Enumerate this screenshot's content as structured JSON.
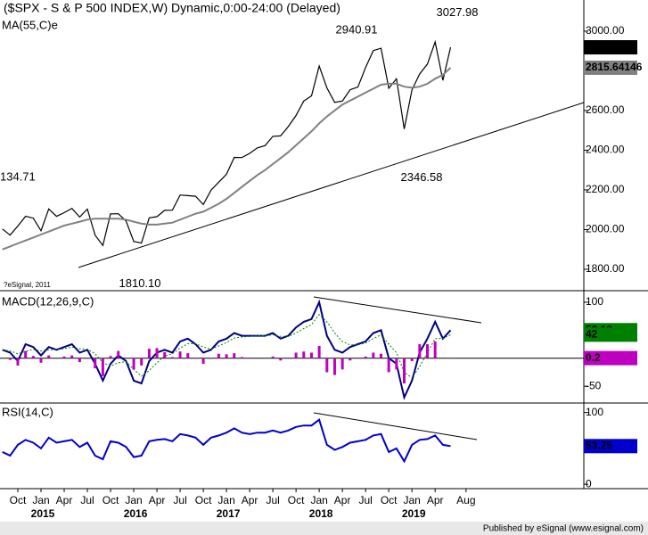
{
  "chart_data": [
    {
      "type": "line",
      "title": "($SPX - S & P 500 INDEX,W) Dynamic,0:00-24:00 (Delayed)",
      "categories": [
        null,
        null,
        "Oct",
        null,
        null,
        "Jan",
        null,
        null,
        "Apr",
        null,
        null,
        "Jul",
        null,
        null,
        "Oct",
        null,
        null,
        "Jan",
        null,
        null,
        "Apr",
        null,
        null,
        "Jul",
        null,
        null,
        "Oct",
        null,
        null,
        "Jan",
        null,
        null,
        "Apr",
        null,
        null,
        "Jul",
        null,
        null,
        "Oct",
        null,
        null,
        "Jan",
        null,
        null,
        "Apr",
        null,
        null,
        "Jul",
        null,
        null,
        "Oct",
        null,
        null,
        "Jan",
        null,
        null,
        "Apr",
        null,
        null,
        null,
        "Aug"
      ],
      "year_labels": [
        "2015",
        "2016",
        "2017",
        "2018",
        "2019"
      ],
      "ylim": [
        1692,
        3157
      ],
      "yticks": [
        {
          "value": 1800,
          "label": "1800.00"
        },
        {
          "value": 2000,
          "label": "2000.00"
        },
        {
          "value": 2200,
          "label": "2200.00"
        },
        {
          "value": 2400,
          "label": "2400.00"
        },
        {
          "value": 2600,
          "label": "2600.00"
        },
        {
          "value": 3000,
          "label": "3000.00"
        }
      ],
      "series": [
        {
          "color": "#000000",
          "values": [
            2003,
            1972,
            2018,
            2067,
            2058,
            1994,
            2104,
            2067,
            2085,
            2107,
            2063,
            2103,
            1972,
            1920,
            2079,
            2080,
            2043,
            1940,
            1932,
            2059,
            2065,
            2097,
            2098,
            2174,
            2171,
            2168,
            2126,
            2199,
            2239,
            2279,
            2364,
            2363,
            2384,
            2412,
            2423,
            2470,
            2472,
            2519,
            2575,
            2648,
            2674,
            2824,
            2714,
            2641,
            2648,
            2705,
            2718,
            2816,
            2902,
            2914,
            2712,
            2760,
            2507,
            2704,
            2784,
            2834,
            2946,
            2752,
            2918.65,
            null,
            null
          ]
        },
        {
          "name": "MA(55,C)e",
          "color": "#808080",
          "values": [
            1900,
            1915,
            1930,
            1945,
            1960,
            1975,
            1990,
            2005,
            2020,
            2030,
            2040,
            2050,
            2055,
            2055,
            2055,
            2055,
            2050,
            2040,
            2030,
            2025,
            2025,
            2030,
            2035,
            2050,
            2065,
            2080,
            2090,
            2110,
            2130,
            2155,
            2185,
            2215,
            2245,
            2275,
            2300,
            2330,
            2360,
            2390,
            2425,
            2460,
            2495,
            2535,
            2570,
            2600,
            2630,
            2650,
            2670,
            2690,
            2710,
            2730,
            2735,
            2735,
            2720,
            2715,
            2720,
            2735,
            2760,
            2780,
            2815.64146,
            null,
            null
          ]
        }
      ],
      "peak_labels": [
        3027.98,
        2940.91,
        {
          "value": 2346.58,
          "label": "2346.58"
        },
        {
          "value": 1810.1,
          "label": "1810.10"
        }
      ],
      "left_edge_label": "134.71",
      "watermark": "?eSignal, 2011"
    },
    {
      "type": "macd",
      "ylim": [
        -80,
        119
      ],
      "yticks": [
        100,
        -50
      ],
      "series": [
        {
          "name": "MACD(12,26,9,C)",
          "color": "#000080",
          "values": [
            15,
            10,
            -5,
            25,
            20,
            5,
            20,
            15,
            20,
            25,
            10,
            15,
            -10,
            -40,
            -10,
            5,
            -5,
            -40,
            -45,
            -5,
            10,
            15,
            10,
            30,
            35,
            25,
            10,
            15,
            30,
            35,
            45,
            40,
            40,
            40,
            40,
            45,
            35,
            40,
            55,
            65,
            70,
            100,
            40,
            15,
            10,
            20,
            25,
            30,
            45,
            50,
            0,
            -10,
            -70,
            -40,
            10,
            35,
            65,
            35,
            50.13,
            null,
            null
          ]
        },
        {
          "color": "#008000",
          "dash": true,
          "values": [
            15,
            13,
            8,
            12,
            16,
            13,
            15,
            15,
            17,
            20,
            17,
            16,
            8,
            -8,
            -14,
            -8,
            -6,
            -20,
            -32,
            -22,
            -8,
            4,
            8,
            18,
            26,
            26,
            20,
            16,
            22,
            28,
            36,
            38,
            39,
            40,
            40,
            42,
            39,
            39,
            45,
            53,
            60,
            78,
            65,
            45,
            30,
            24,
            24,
            27,
            35,
            42,
            25,
            10,
            -25,
            -35,
            -15,
            10,
            35,
            35,
            42,
            null,
            null
          ]
        },
        {
          "color": "#c000c0",
          "bars": true,
          "values": [
            0,
            -3,
            -13,
            13,
            4,
            -8,
            5,
            0,
            3,
            5,
            -7,
            -1,
            -18,
            -32,
            4,
            13,
            1,
            -20,
            -13,
            17,
            18,
            11,
            2,
            12,
            9,
            -1,
            -10,
            -1,
            8,
            7,
            9,
            2,
            1,
            0,
            0,
            3,
            -4,
            1,
            10,
            12,
            10,
            22,
            -25,
            -30,
            -20,
            -4,
            1,
            3,
            10,
            8,
            -25,
            -20,
            -45,
            -5,
            25,
            25,
            30,
            0,
            0.2,
            null,
            null
          ]
        }
      ]
    },
    {
      "type": "rsi",
      "ylim": [
        -6,
        112
      ],
      "yticks": [
        100,
        0
      ],
      "series": [
        {
          "name": "RSI(14,C)",
          "color": "#0000cc",
          "values": [
            45,
            40,
            55,
            62,
            58,
            50,
            65,
            58,
            60,
            62,
            52,
            58,
            40,
            35,
            60,
            58,
            52,
            38,
            40,
            60,
            62,
            63,
            60,
            70,
            68,
            65,
            55,
            65,
            68,
            72,
            78,
            72,
            70,
            72,
            72,
            75,
            72,
            75,
            80,
            82,
            82,
            90,
            55,
            48,
            52,
            58,
            60,
            62,
            68,
            70,
            45,
            50,
            32,
            55,
            62,
            63,
            68,
            55,
            53.25,
            null,
            null
          ]
        }
      ]
    }
  ],
  "footer": "Published by eSignal (www.esignal.com)"
}
